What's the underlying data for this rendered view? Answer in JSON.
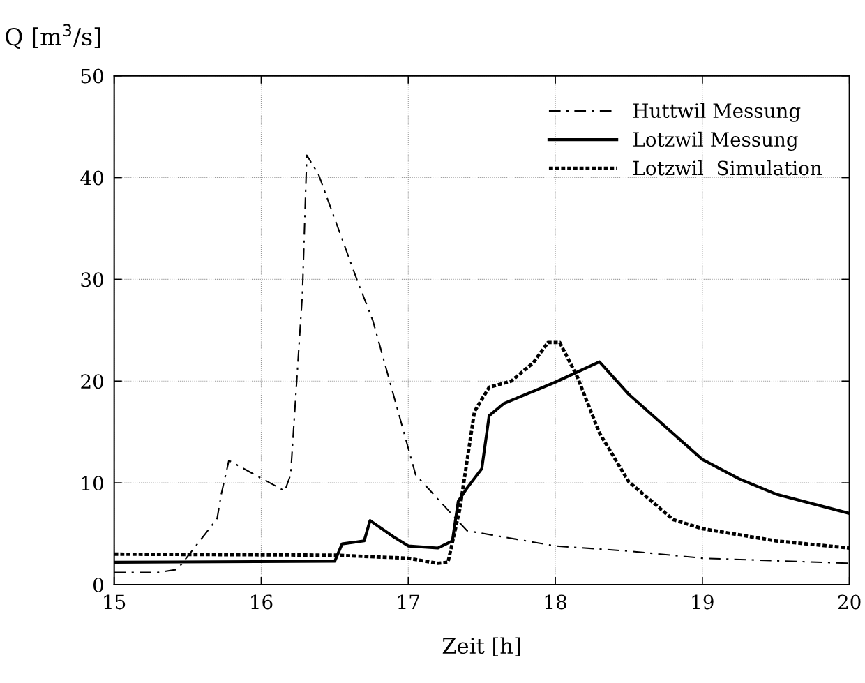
{
  "chart_data": {
    "type": "line",
    "xlabel": "Zeit [h]",
    "ylabel": "Q [m$^{3}$/s]",
    "xlim": [
      15,
      20
    ],
    "xticks": [
      15,
      16,
      17,
      18,
      19,
      20
    ],
    "ylim": [
      0,
      50
    ],
    "yticks": [
      0,
      10,
      20,
      30,
      40,
      50
    ],
    "grid": true,
    "legend": "top right",
    "marker": "none",
    "series": [
      {
        "name": "Huttwil Messung",
        "color": "#000000",
        "line_style": "dashdot",
        "x": [
          15,
          15.3,
          15.43,
          15.62,
          15.7,
          15.73,
          15.78,
          16.16,
          16.2,
          16.28,
          16.31,
          16.39,
          16.65,
          16.76,
          17.05,
          17.31,
          17.4,
          18,
          18.5,
          19,
          20
        ],
        "values": [
          1.2,
          1.2,
          1.5,
          5,
          6.5,
          9,
          12.2,
          9.2,
          10.8,
          28.6,
          42.2,
          40.3,
          30,
          25.9,
          10.8,
          6.7,
          5.3,
          3.8,
          3.3,
          2.6,
          2.1
        ]
      },
      {
        "name": "Lotzwil Messung",
        "color": "#000000",
        "line_style": "solid",
        "x": [
          15,
          16.5,
          16.55,
          16.7,
          16.74,
          16.9,
          17.0,
          17.2,
          17.3,
          17.34,
          17.4,
          17.5,
          17.55,
          17.65,
          18.0,
          18.3,
          18.5,
          19,
          19.25,
          19.5,
          20
        ],
        "values": [
          2.2,
          2.3,
          4.0,
          4.3,
          6.3,
          4.7,
          3.8,
          3.6,
          4.3,
          8.2,
          9.5,
          11.4,
          16.6,
          17.8,
          19.9,
          21.9,
          18.7,
          12.3,
          10.4,
          8.9,
          7.0
        ]
      },
      {
        "name": "Lotzwil  Simulation",
        "color": "#000000",
        "line_style": "dotted",
        "x": [
          15,
          16.5,
          17,
          17.2,
          17.27,
          17.35,
          17.45,
          17.55,
          17.7,
          17.85,
          17.95,
          18.03,
          18.15,
          18.3,
          18.5,
          18.8,
          19,
          19.5,
          20
        ],
        "values": [
          3.0,
          2.9,
          2.6,
          2.1,
          2.2,
          7.4,
          17,
          19.4,
          20,
          21.8,
          23.8,
          23.8,
          20.4,
          14.9,
          10.1,
          6.4,
          5.5,
          4.3,
          3.6
        ]
      }
    ]
  }
}
